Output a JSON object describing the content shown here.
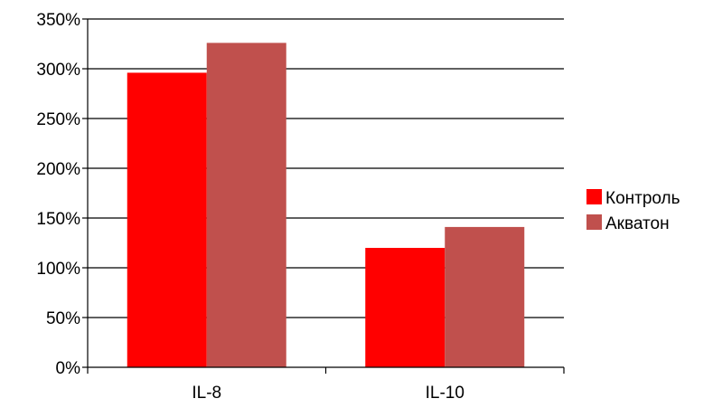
{
  "chart_data": {
    "type": "bar",
    "title": "",
    "xlabel": "",
    "ylabel": "",
    "categories": [
      "IL-8",
      "IL-10"
    ],
    "series": [
      {
        "name": "Контроль",
        "values": [
          296,
          120
        ],
        "color": "#ff0000"
      },
      {
        "name": "Акватон",
        "values": [
          326,
          141
        ],
        "color": "#c0504d"
      }
    ],
    "ylim": [
      0,
      350
    ],
    "y_ticks": [
      0,
      50,
      100,
      150,
      200,
      250,
      300,
      350
    ],
    "y_tick_format": "percent",
    "grid": true,
    "legend_position": "right"
  }
}
